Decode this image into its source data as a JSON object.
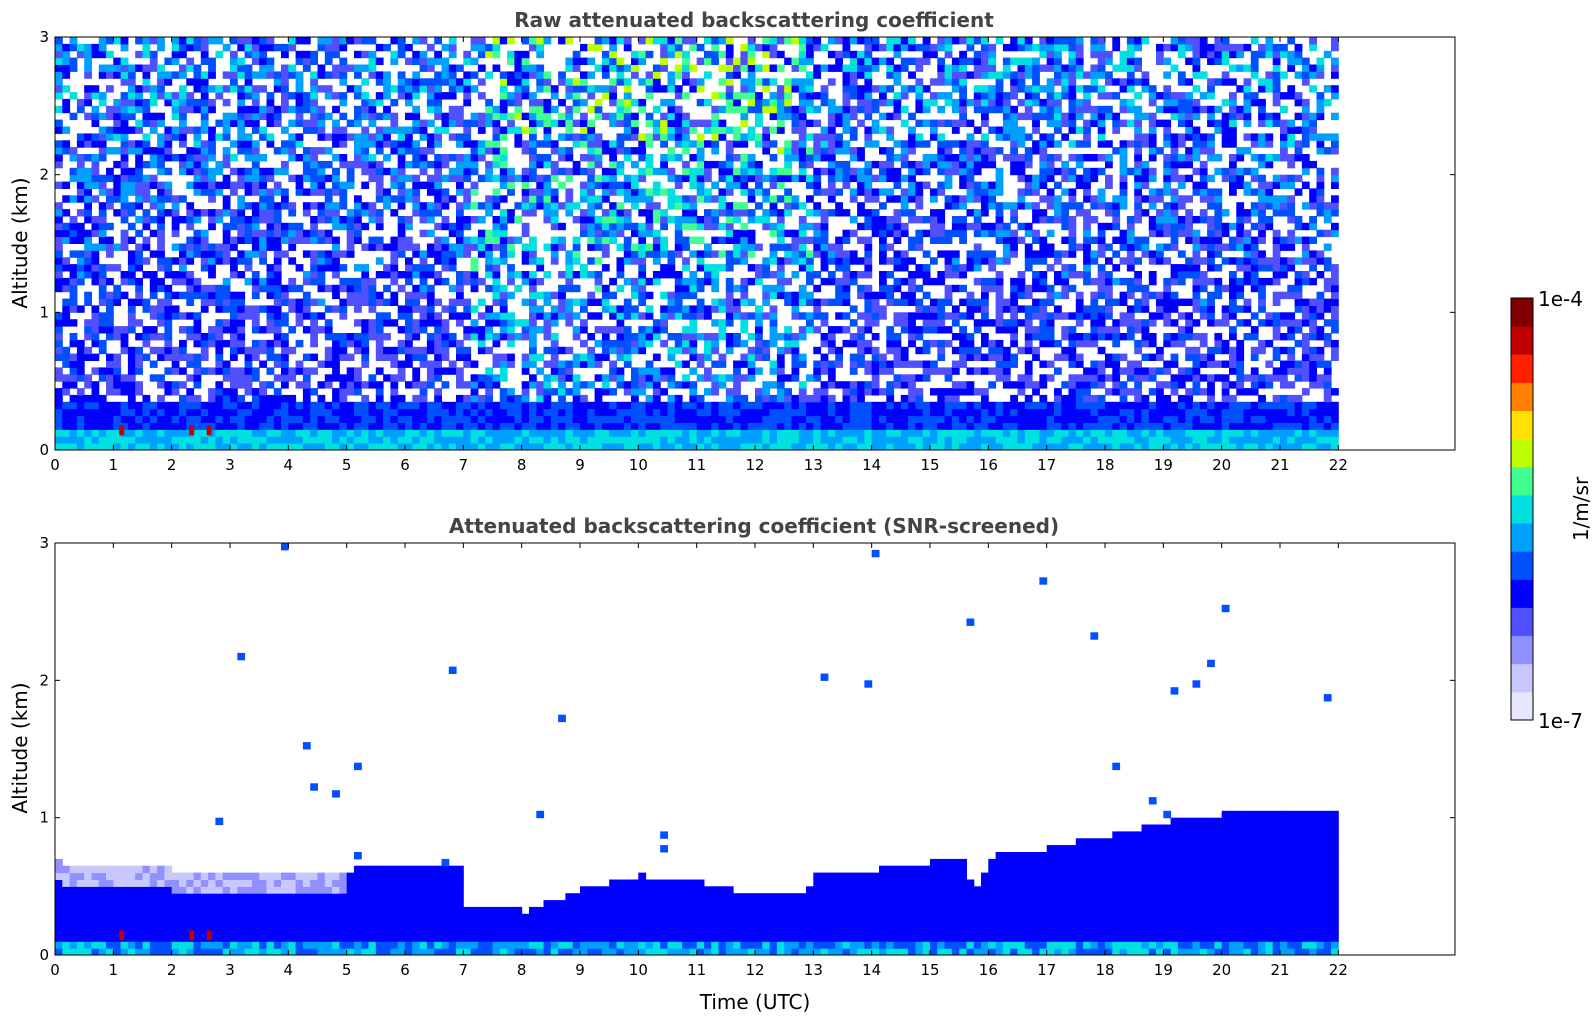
{
  "chart_data": [
    {
      "type": "heatmap",
      "title": "Raw attenuated backscattering coefficient",
      "xlabel": "",
      "ylabel": "Altitude (km)",
      "xlim": [
        0,
        24
      ],
      "ylim": [
        0,
        3
      ],
      "xticks": [
        "0",
        "1",
        "2",
        "3",
        "4",
        "5",
        "6",
        "7",
        "8",
        "9",
        "10",
        "11",
        "12",
        "13",
        "14",
        "15",
        "16",
        "17",
        "18",
        "19",
        "20",
        "21",
        "22"
      ],
      "yticks": [
        "0",
        "1",
        "2",
        "3"
      ],
      "data_extent_time": [
        0,
        22
      ],
      "colorscale": "jet",
      "description_of_field": {
        "surface_layer_top_km": 0.35,
        "strong_return_times_utc": [
          1.1,
          2.3,
          2.6
        ]
      }
    },
    {
      "type": "heatmap",
      "title": "Attenuated backscattering coefficient (SNR-screened)",
      "xlabel": "Time (UTC)",
      "ylabel": "Altitude (km)",
      "xlim": [
        0,
        24
      ],
      "ylim": [
        0,
        3
      ],
      "xticks": [
        "0",
        "1",
        "2",
        "3",
        "4",
        "5",
        "6",
        "7",
        "8",
        "9",
        "10",
        "11",
        "12",
        "13",
        "14",
        "15",
        "16",
        "17",
        "18",
        "19",
        "20",
        "21",
        "22"
      ],
      "yticks": [
        "0",
        "1",
        "2",
        "3"
      ],
      "data_extent_time": [
        0,
        22
      ],
      "colorscale": "jet",
      "layer_top_km": {
        "time": [
          0,
          1,
          2,
          3,
          4,
          5,
          6,
          6.9,
          7.0,
          8,
          9,
          10,
          11,
          12,
          12.8,
          13,
          14,
          15,
          15.5,
          15.7,
          16,
          17,
          18,
          19,
          20,
          21,
          22
        ],
        "top": [
          0.65,
          0.62,
          0.6,
          0.6,
          0.6,
          0.6,
          0.62,
          0.62,
          0.32,
          0.3,
          0.45,
          0.55,
          0.5,
          0.4,
          0.4,
          0.55,
          0.6,
          0.65,
          0.68,
          0.4,
          0.7,
          0.75,
          0.85,
          0.95,
          1.0,
          1.0,
          1.05
        ]
      }
    }
  ],
  "colorbar": {
    "label": "1/m/sr",
    "max_label": "1e-4",
    "min_label": "1e-7",
    "colors": [
      "#e6e6ff",
      "#c8c8ff",
      "#9090ff",
      "#5050ff",
      "#0000ff",
      "#0050ff",
      "#00a0ff",
      "#00e0e0",
      "#40ff90",
      "#c0ff00",
      "#ffe000",
      "#ff8000",
      "#ff2000",
      "#c00000",
      "#800000"
    ]
  }
}
